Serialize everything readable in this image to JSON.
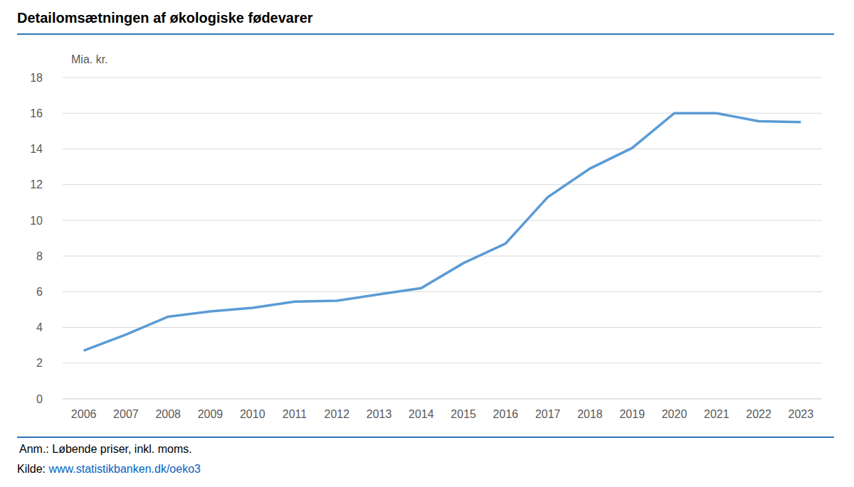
{
  "chart_data": {
    "type": "line",
    "title": "Detailomsætningen af økologiske fødevarer",
    "y_label": "Mia. kr.",
    "note": "Anm.: Løbende priser, inkl. moms.",
    "source_label": "Kilde:",
    "source": "www.statistikbanken.dk/oeko3",
    "categories": [
      "2006",
      "2007",
      "2008",
      "2009",
      "2010",
      "2011",
      "2012",
      "2013",
      "2014",
      "2015",
      "2016",
      "2017",
      "2018",
      "2019",
      "2020",
      "2021",
      "2022",
      "2023"
    ],
    "values": [
      2.7,
      3.6,
      4.6,
      4.9,
      5.1,
      5.45,
      5.5,
      5.85,
      6.2,
      7.6,
      8.7,
      11.3,
      12.9,
      14.05,
      16.0,
      16.0,
      15.55,
      15.5
    ],
    "color": "#5b9bd5",
    "ylim": [
      0,
      18
    ],
    "yticks": [
      0,
      2,
      4,
      6,
      8,
      10,
      12,
      14,
      16,
      18
    ],
    "grid": true
  }
}
